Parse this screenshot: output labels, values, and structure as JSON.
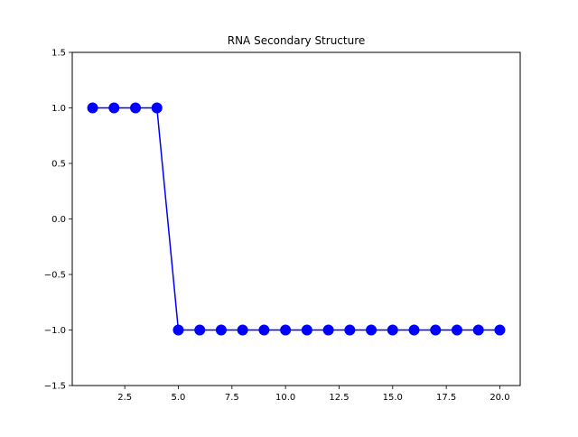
{
  "chart_data": {
    "type": "line",
    "title": "RNA Secondary Structure",
    "xlabel": "",
    "ylabel": "",
    "xlim": [
      0.05,
      20.95
    ],
    "ylim": [
      -1.5,
      1.5
    ],
    "x_ticks": [
      "2.5",
      "5.0",
      "7.5",
      "10.0",
      "12.5",
      "15.0",
      "17.5",
      "20.0"
    ],
    "y_ticks": [
      "−1.5",
      "−1.0",
      "−0.5",
      "0.0",
      "0.5",
      "1.0",
      "1.5"
    ],
    "grid": false,
    "series": [
      {
        "x": [
          1,
          2,
          3,
          4,
          5,
          6,
          7,
          8,
          9,
          10,
          11,
          12,
          13,
          14,
          15,
          16,
          17,
          18,
          19,
          20
        ],
        "values": [
          1,
          1,
          1,
          1,
          -1,
          -1,
          -1,
          -1,
          -1,
          -1,
          -1,
          -1,
          -1,
          -1,
          -1,
          -1,
          -1,
          -1,
          -1,
          -1
        ],
        "color": "#0000ff",
        "marker": "circle"
      }
    ]
  }
}
